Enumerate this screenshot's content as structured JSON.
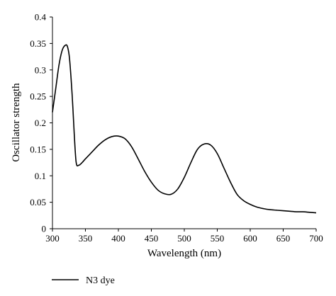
{
  "chart_data": {
    "type": "line",
    "xlabel": "Wavelength (nm)",
    "ylabel": "Oscillator strength",
    "xlim": [
      300,
      700
    ],
    "ylim": [
      0,
      0.4
    ],
    "xticks": [
      300,
      350,
      400,
      450,
      500,
      550,
      600,
      650,
      700
    ],
    "xtick_labels": [
      "300",
      "350",
      "400",
      "450",
      "500",
      "550",
      "600",
      "650",
      "700"
    ],
    "yticks": [
      0,
      0.05,
      0.1,
      0.15,
      0.2,
      0.25,
      0.3,
      0.35,
      0.4
    ],
    "ytick_labels": [
      "0",
      "0.05",
      "0.1",
      "0.15",
      "0.2",
      "0.25",
      "0.3",
      "0.35",
      "0.4"
    ],
    "grid": false,
    "legend_position": "bottom-left",
    "series": [
      {
        "name": "N3 dye",
        "color": "#000000",
        "x": [
          300,
          305,
          310,
          315,
          320,
          323,
          326,
          330,
          333,
          336,
          340,
          345,
          350,
          360,
          370,
          380,
          390,
          400,
          410,
          420,
          430,
          440,
          450,
          460,
          470,
          480,
          490,
          500,
          510,
          520,
          530,
          540,
          550,
          560,
          570,
          580,
          590,
          600,
          610,
          620,
          630,
          640,
          650,
          660,
          670,
          680,
          690,
          700
        ],
        "y": [
          0.22,
          0.265,
          0.31,
          0.338,
          0.347,
          0.343,
          0.32,
          0.25,
          0.18,
          0.125,
          0.12,
          0.125,
          0.132,
          0.145,
          0.158,
          0.168,
          0.174,
          0.175,
          0.17,
          0.155,
          0.132,
          0.108,
          0.088,
          0.073,
          0.066,
          0.065,
          0.075,
          0.097,
          0.125,
          0.15,
          0.16,
          0.158,
          0.142,
          0.115,
          0.088,
          0.065,
          0.053,
          0.046,
          0.041,
          0.038,
          0.036,
          0.035,
          0.034,
          0.033,
          0.032,
          0.032,
          0.031,
          0.03
        ]
      }
    ]
  }
}
